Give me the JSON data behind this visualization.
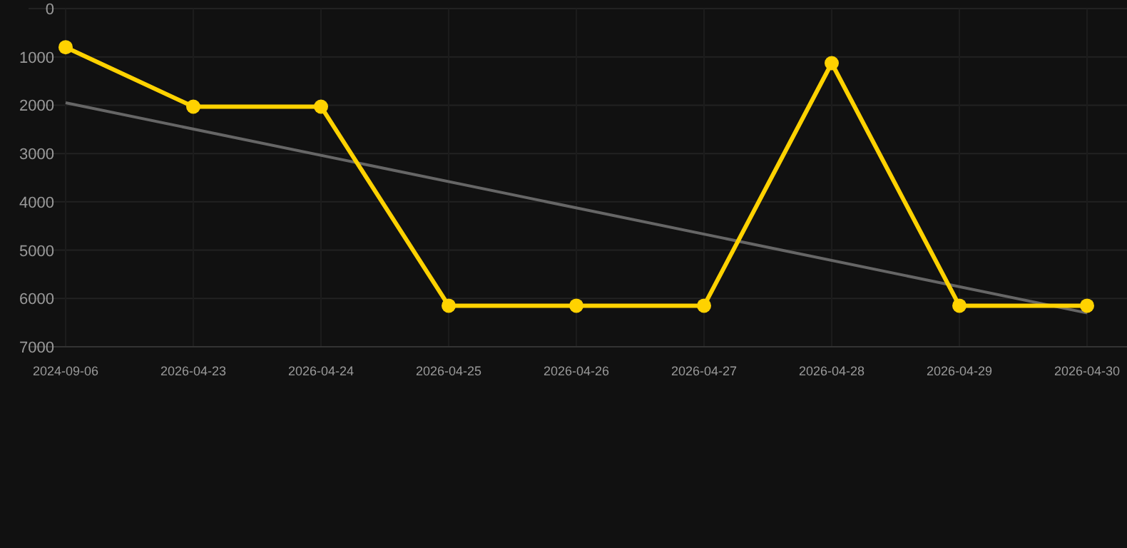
{
  "chart_data": {
    "type": "line",
    "categories": [
      "2024-09-06",
      "2026-04-23",
      "2026-04-24",
      "2026-04-25",
      "2026-04-26",
      "2026-04-27",
      "2026-04-28",
      "2026-04-29",
      "2026-04-30"
    ],
    "series": [
      {
        "color": "#ffd200",
        "values": [
          800,
          2030,
          2030,
          6150,
          6150,
          6150,
          1130,
          6150,
          6150
        ],
        "marker": "circle"
      },
      {
        "type": "line",
        "color": "#666666",
        "values": [
          1950,
          null,
          null,
          null,
          null,
          null,
          null,
          null,
          6300
        ],
        "marker": "none"
      }
    ],
    "ylim": [
      7000,
      0
    ],
    "yticks": [
      0,
      1000,
      2000,
      3000,
      4000,
      5000,
      6000,
      7000
    ],
    "grid": true
  }
}
